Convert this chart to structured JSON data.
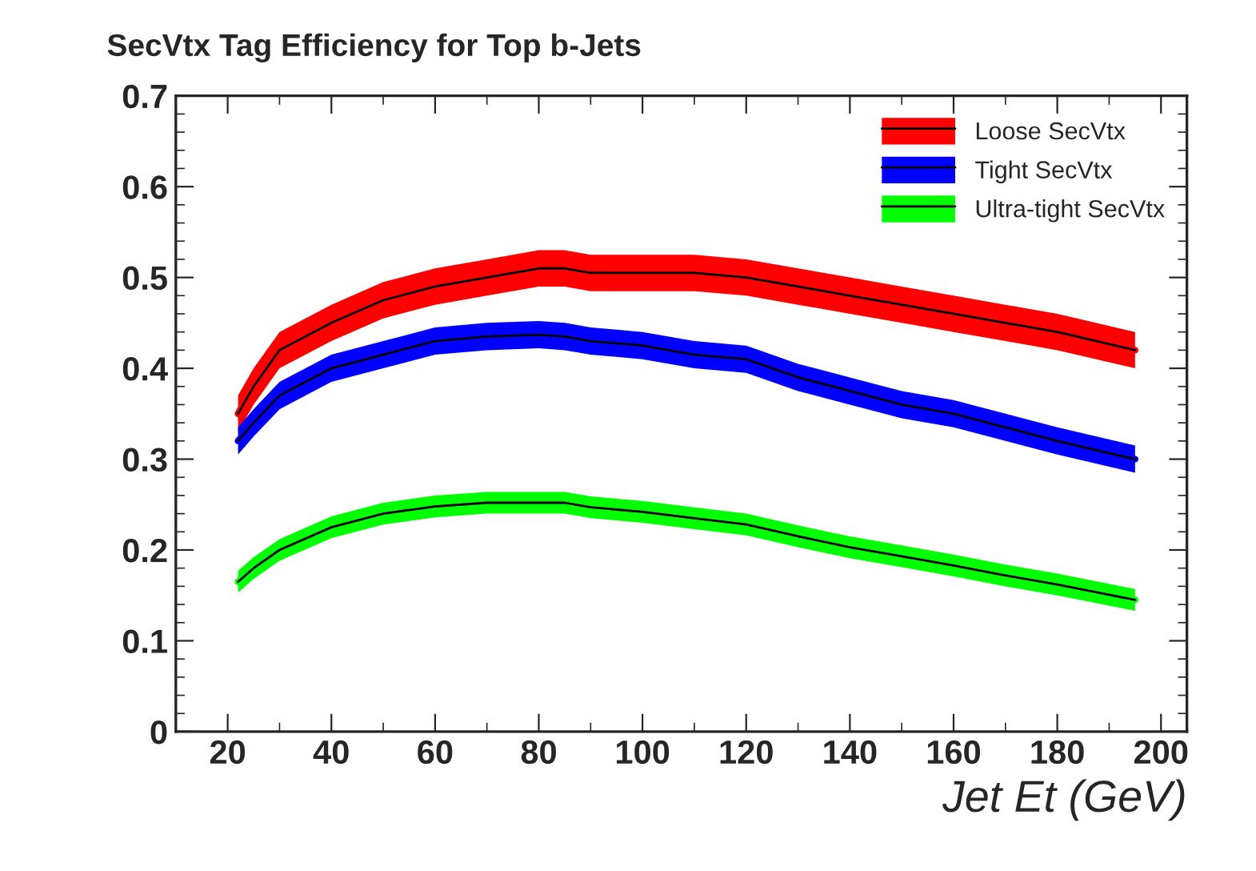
{
  "chart_data": {
    "type": "line",
    "title": "SecVtx Tag Efficiency for Top b-Jets",
    "xlabel": "Jet Et (GeV)",
    "xlim": [
      10,
      205
    ],
    "xticks": [
      20,
      40,
      60,
      80,
      100,
      120,
      140,
      160,
      180,
      200
    ],
    "ylim": [
      0,
      0.7
    ],
    "yticks": [
      0,
      0.1,
      0.2,
      0.3,
      0.4,
      0.5,
      0.6,
      0.7
    ],
    "grid": false,
    "legend": "top right",
    "marker": "none",
    "line_style": "solid",
    "series": [
      {
        "name": "Loose SecVtx",
        "color": "#ff0000",
        "x": [
          22,
          25,
          30,
          40,
          50,
          60,
          70,
          80,
          85,
          90,
          100,
          110,
          120,
          130,
          140,
          150,
          160,
          170,
          180,
          195
        ],
        "values": [
          0.35,
          0.38,
          0.42,
          0.45,
          0.475,
          0.49,
          0.5,
          0.51,
          0.51,
          0.505,
          0.505,
          0.505,
          0.5,
          0.49,
          0.48,
          0.47,
          0.46,
          0.45,
          0.44,
          0.42
        ],
        "lower": [
          0.33,
          0.36,
          0.4,
          0.43,
          0.455,
          0.47,
          0.48,
          0.49,
          0.49,
          0.485,
          0.485,
          0.485,
          0.48,
          0.47,
          0.46,
          0.45,
          0.44,
          0.43,
          0.42,
          0.4
        ],
        "upper": [
          0.37,
          0.4,
          0.44,
          0.47,
          0.495,
          0.51,
          0.52,
          0.53,
          0.53,
          0.525,
          0.525,
          0.525,
          0.52,
          0.51,
          0.5,
          0.49,
          0.48,
          0.47,
          0.46,
          0.44
        ]
      },
      {
        "name": "Tight SecVtx",
        "color": "#0000ff",
        "x": [
          22,
          25,
          30,
          40,
          50,
          60,
          70,
          80,
          85,
          90,
          100,
          110,
          120,
          130,
          140,
          150,
          160,
          170,
          180,
          195
        ],
        "values": [
          0.32,
          0.34,
          0.37,
          0.4,
          0.415,
          0.43,
          0.435,
          0.437,
          0.435,
          0.43,
          0.425,
          0.415,
          0.41,
          0.39,
          0.375,
          0.36,
          0.35,
          0.335,
          0.32,
          0.3
        ],
        "lower": [
          0.305,
          0.325,
          0.355,
          0.385,
          0.4,
          0.415,
          0.42,
          0.422,
          0.42,
          0.415,
          0.41,
          0.4,
          0.395,
          0.375,
          0.36,
          0.345,
          0.335,
          0.32,
          0.305,
          0.285
        ],
        "upper": [
          0.335,
          0.355,
          0.385,
          0.415,
          0.43,
          0.445,
          0.45,
          0.452,
          0.45,
          0.445,
          0.44,
          0.43,
          0.425,
          0.405,
          0.39,
          0.375,
          0.365,
          0.35,
          0.335,
          0.315
        ]
      },
      {
        "name": "Ultra-tight SecVtx",
        "color": "#00ff00",
        "x": [
          22,
          25,
          30,
          40,
          50,
          60,
          70,
          80,
          85,
          90,
          100,
          110,
          120,
          130,
          140,
          150,
          160,
          170,
          180,
          195
        ],
        "values": [
          0.165,
          0.18,
          0.2,
          0.225,
          0.24,
          0.248,
          0.252,
          0.252,
          0.252,
          0.247,
          0.242,
          0.235,
          0.228,
          0.215,
          0.203,
          0.193,
          0.183,
          0.172,
          0.162,
          0.145
        ],
        "lower": [
          0.153,
          0.168,
          0.188,
          0.213,
          0.228,
          0.236,
          0.24,
          0.24,
          0.24,
          0.235,
          0.23,
          0.223,
          0.216,
          0.203,
          0.191,
          0.181,
          0.171,
          0.16,
          0.15,
          0.133
        ],
        "upper": [
          0.177,
          0.192,
          0.212,
          0.237,
          0.252,
          0.26,
          0.264,
          0.264,
          0.264,
          0.259,
          0.254,
          0.247,
          0.24,
          0.227,
          0.215,
          0.205,
          0.195,
          0.184,
          0.174,
          0.157
        ]
      }
    ]
  }
}
